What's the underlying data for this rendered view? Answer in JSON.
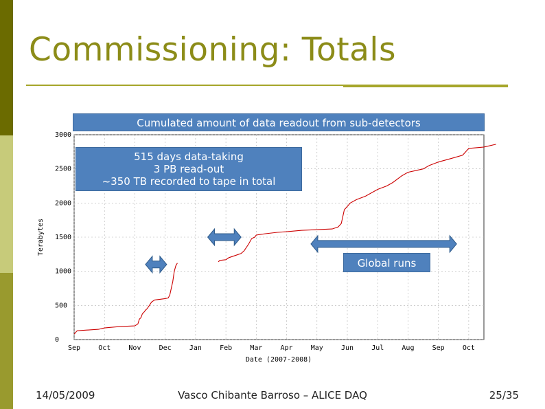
{
  "slide": {
    "title": "Commissioning: Totals",
    "colors": {
      "sidebar": [
        "#6b6b00",
        "#c7cb7a",
        "#999a2e"
      ],
      "title": "#8c8c18",
      "callout": "#4f81bd",
      "arrow": "#4f81bd",
      "line": "#cc0000"
    }
  },
  "callouts": {
    "chart_title": "Cumulated amount of data readout from sub-detectors",
    "summary_lines": [
      "515 days data-taking",
      "3 PB read-out",
      "~350 TB recorded to tape in total"
    ],
    "global_runs": "Global runs"
  },
  "footer": {
    "date": "14/05/2009",
    "author": "Vasco Chibante Barroso – ALICE DAQ",
    "page": "25/35"
  },
  "chart_data": {
    "type": "line",
    "title": "",
    "xlabel": "Date (2007-2008)",
    "ylabel": "Terabytes",
    "ylim": [
      0,
      3000
    ],
    "yticks": [
      0,
      500,
      1000,
      1500,
      2000,
      2500,
      3000
    ],
    "ytick_labels": [
      "0",
      "500",
      "1000",
      "1500",
      "2000",
      "2500",
      "3000"
    ],
    "xticks": [
      "Sep",
      "Oct",
      "Nov",
      "Dec",
      "Jan",
      "Feb",
      "Mar",
      "Apr",
      "May",
      "Jun",
      "Jul",
      "Aug",
      "Sep",
      "Oct"
    ],
    "grid": true,
    "series": [
      {
        "segments": [
          [
            [
              0.0,
              80
            ],
            [
              0.1,
              130
            ],
            [
              0.8,
              150
            ],
            [
              1.0,
              170
            ],
            [
              1.5,
              190
            ],
            [
              2.0,
              200
            ],
            [
              2.1,
              230
            ],
            [
              2.15,
              300
            ],
            [
              2.2,
              320
            ],
            [
              2.25,
              380
            ],
            [
              2.3,
              400
            ],
            [
              2.35,
              430
            ],
            [
              2.4,
              450
            ],
            [
              2.45,
              480
            ],
            [
              2.55,
              550
            ],
            [
              2.65,
              580
            ],
            [
              3.0,
              600
            ],
            [
              3.1,
              610
            ],
            [
              3.15,
              650
            ],
            [
              3.2,
              750
            ],
            [
              3.25,
              850
            ],
            [
              3.3,
              1000
            ],
            [
              3.35,
              1080
            ],
            [
              3.4,
              1120
            ]
          ],
          [
            [
              4.75,
              1140
            ],
            [
              4.8,
              1160
            ],
            [
              5.0,
              1170
            ],
            [
              5.1,
              1200
            ],
            [
              5.3,
              1230
            ],
            [
              5.5,
              1260
            ],
            [
              5.6,
              1300
            ],
            [
              5.75,
              1400
            ],
            [
              5.85,
              1480
            ],
            [
              5.95,
              1500
            ],
            [
              6.0,
              1530
            ],
            [
              6.3,
              1550
            ],
            [
              6.7,
              1570
            ],
            [
              7.0,
              1580
            ],
            [
              7.5,
              1600
            ],
            [
              8.0,
              1610
            ],
            [
              8.5,
              1620
            ],
            [
              8.7,
              1650
            ],
            [
              8.8,
              1700
            ],
            [
              8.85,
              1800
            ],
            [
              8.9,
              1900
            ],
            [
              9.0,
              1950
            ],
            [
              9.1,
              2000
            ],
            [
              9.3,
              2050
            ],
            [
              9.6,
              2100
            ],
            [
              10.0,
              2200
            ],
            [
              10.3,
              2250
            ],
            [
              10.5,
              2300
            ],
            [
              10.8,
              2400
            ],
            [
              11.0,
              2450
            ],
            [
              11.3,
              2480
            ],
            [
              11.5,
              2500
            ],
            [
              11.7,
              2550
            ],
            [
              12.0,
              2600
            ],
            [
              12.4,
              2650
            ],
            [
              12.8,
              2700
            ],
            [
              12.9,
              2750
            ],
            [
              13.0,
              2800
            ],
            [
              13.5,
              2820
            ],
            [
              13.9,
              2860
            ]
          ]
        ]
      }
    ],
    "arrows": [
      {
        "x_from": 2.35,
        "x_to": 3.05,
        "y": 1100
      },
      {
        "x_from": 4.4,
        "x_to": 5.5,
        "y": 1500
      },
      {
        "x_from": 7.8,
        "x_to": 12.6,
        "y": 1400
      }
    ]
  }
}
